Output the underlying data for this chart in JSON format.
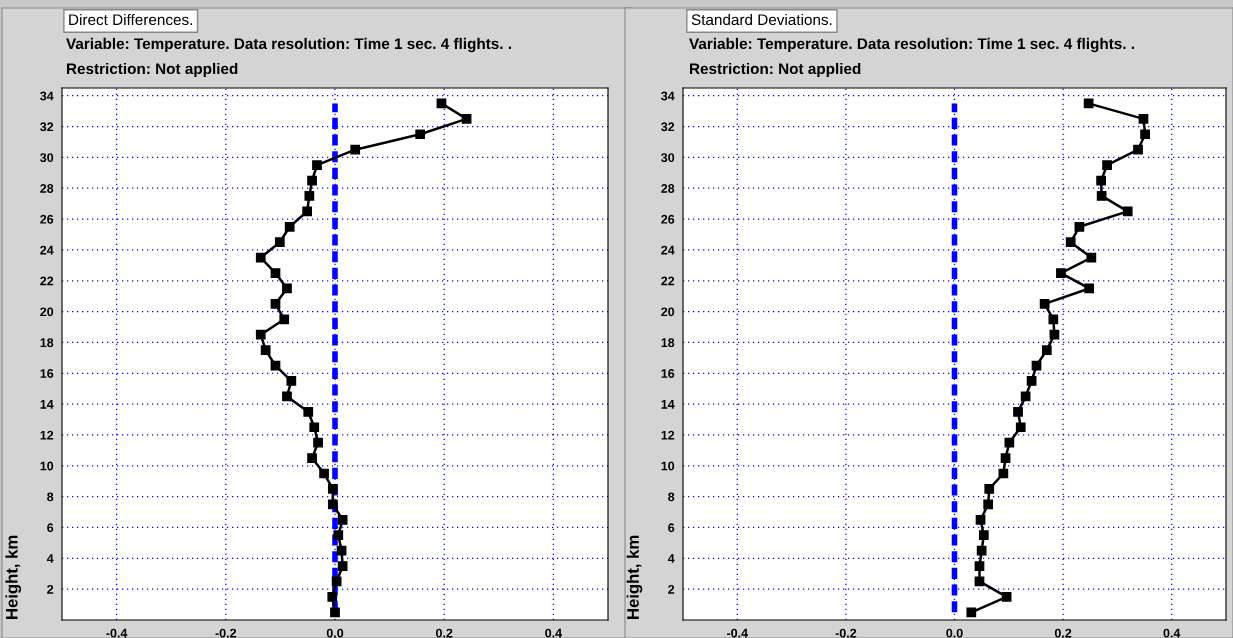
{
  "chart_data": [
    {
      "type": "line",
      "title": "Direct Differences.",
      "subtitle": "Variable: Temperature. Data resolution: Time 1 sec. 4 flights. .",
      "annotations": [
        "Restriction: Not applied"
      ],
      "ylabel": "Height, km",
      "xlim": [
        -0.5,
        0.5
      ],
      "xticks": [
        {
          "value": -0.4,
          "label": "-0.4"
        },
        {
          "value": -0.2,
          "label": "-0.2"
        },
        {
          "value": 0,
          "label": "0.0"
        },
        {
          "value": 0.2,
          "label": "0.2"
        },
        {
          "value": 0.4,
          "label": "0.4"
        }
      ],
      "ylim": [
        0,
        34.5
      ],
      "yticks": [
        2,
        4,
        6,
        8,
        10,
        12,
        14,
        16,
        18,
        20,
        22,
        24,
        26,
        28,
        30,
        32,
        34
      ],
      "grid": true,
      "series": [
        {
          "color": "#0000ff",
          "line_style": "dashed",
          "marker": "none",
          "x": [
            0,
            0
          ],
          "values": [
            0.5,
            33.5
          ]
        },
        {
          "color": "#000000",
          "line_style": "solid",
          "marker": "square",
          "x": [
            0.0,
            -0.005,
            0.003,
            0.014,
            0.012,
            0.006,
            0.014,
            -0.004,
            -0.004,
            -0.02,
            -0.042,
            -0.031,
            -0.038,
            -0.049,
            -0.088,
            -0.08,
            -0.109,
            -0.127,
            -0.136,
            -0.093,
            -0.109,
            -0.088,
            -0.109,
            -0.136,
            -0.101,
            -0.083,
            -0.051,
            -0.047,
            -0.042,
            -0.033,
            0.037,
            0.156,
            0.241,
            0.195
          ],
          "values": [
            0.5,
            1.5,
            2.5,
            3.5,
            4.5,
            5.5,
            6.5,
            7.5,
            8.5,
            9.5,
            10.5,
            11.5,
            12.5,
            13.5,
            14.5,
            15.5,
            16.5,
            17.5,
            18.5,
            19.5,
            20.5,
            21.5,
            22.5,
            23.5,
            24.5,
            25.5,
            26.5,
            27.5,
            28.5,
            29.5,
            30.5,
            31.5,
            32.5,
            33.5
          ]
        }
      ]
    },
    {
      "type": "line",
      "title": "Standard Deviations.",
      "subtitle": "Variable: Temperature. Data resolution: Time 1 sec. 4 flights. .",
      "annotations": [
        "Restriction: Not applied"
      ],
      "ylabel": "Height, km",
      "xlim": [
        -0.5,
        0.5
      ],
      "xticks": [
        {
          "value": -0.4,
          "label": "-0.4"
        },
        {
          "value": -0.2,
          "label": "-0.2"
        },
        {
          "value": 0,
          "label": "0.0"
        },
        {
          "value": 0.2,
          "label": "0.2"
        },
        {
          "value": 0.4,
          "label": "0.4"
        }
      ],
      "ylim": [
        0,
        34.5
      ],
      "yticks": [
        2,
        4,
        6,
        8,
        10,
        12,
        14,
        16,
        18,
        20,
        22,
        24,
        26,
        28,
        30,
        32,
        34
      ],
      "grid": true,
      "series": [
        {
          "color": "#0000ff",
          "line_style": "dashed",
          "marker": "none",
          "x": [
            0,
            0
          ],
          "values": [
            0.5,
            33.5
          ]
        },
        {
          "color": "#000000",
          "line_style": "solid",
          "marker": "square",
          "x": [
            0.031,
            0.096,
            0.046,
            0.046,
            0.05,
            0.054,
            0.048,
            0.062,
            0.064,
            0.09,
            0.094,
            0.101,
            0.122,
            0.117,
            0.131,
            0.142,
            0.151,
            0.17,
            0.184,
            0.182,
            0.166,
            0.248,
            0.196,
            0.252,
            0.214,
            0.23,
            0.319,
            0.271,
            0.27,
            0.281,
            0.338,
            0.351,
            0.348,
            0.247
          ],
          "values": [
            0.5,
            1.5,
            2.5,
            3.5,
            4.5,
            5.5,
            6.5,
            7.5,
            8.5,
            9.5,
            10.5,
            11.5,
            12.5,
            13.5,
            14.5,
            15.5,
            16.5,
            17.5,
            18.5,
            19.5,
            20.5,
            21.5,
            22.5,
            23.5,
            24.5,
            25.5,
            26.5,
            27.5,
            28.5,
            29.5,
            30.5,
            31.5,
            32.5,
            33.5
          ]
        }
      ]
    }
  ]
}
